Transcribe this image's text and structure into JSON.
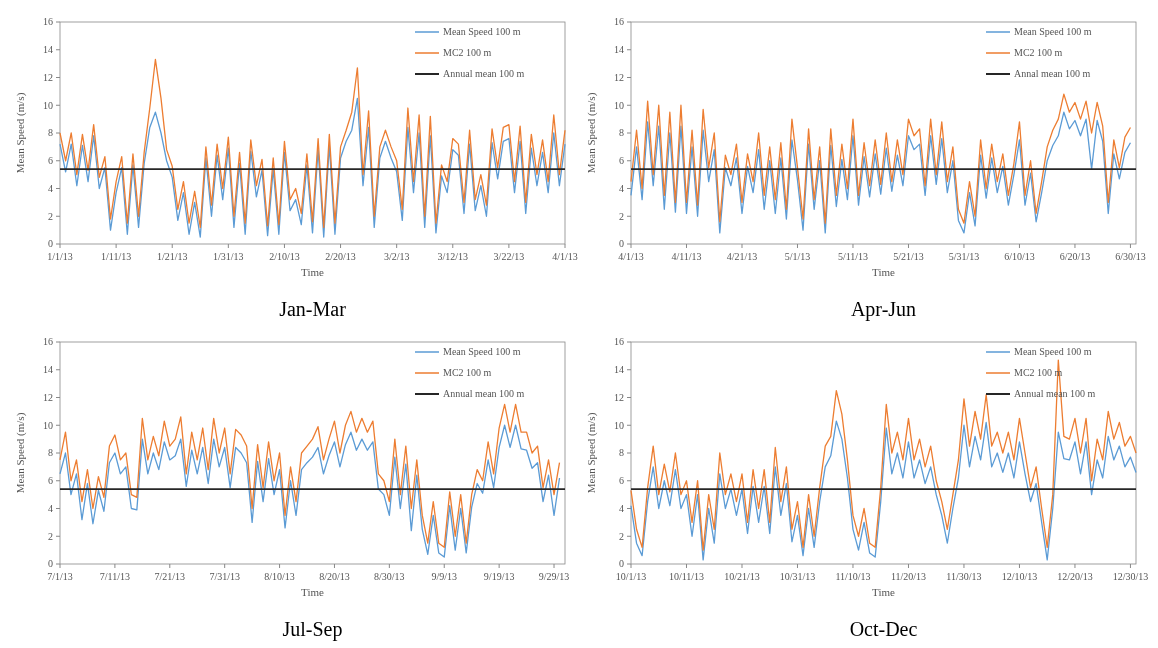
{
  "chart_data": [
    {
      "type": "line",
      "title": "Jan-Mar",
      "xlabel": "Time",
      "ylabel": "Mean Speed (m/s)",
      "legend": "top right",
      "grid": false,
      "ylim": [
        0,
        16
      ],
      "yticks": [
        0,
        2,
        4,
        6,
        8,
        10,
        12,
        14,
        16
      ],
      "xlim": [
        "--01-01",
        "--04-01"
      ],
      "xticks": [
        {
          "value": "--01-01",
          "label": "1/1/13"
        },
        {
          "value": "--01-11",
          "label": "1/11/13"
        },
        {
          "value": "--01-21",
          "label": "1/21/13"
        },
        {
          "value": "--01-31",
          "label": "1/31/13"
        },
        {
          "value": "--02-10",
          "label": "2/10/13"
        },
        {
          "value": "--02-20",
          "label": "2/20/13"
        },
        {
          "value": "--03-02",
          "label": "3/2/13"
        },
        {
          "value": "--03-12",
          "label": "3/12/13"
        },
        {
          "value": "--03-22",
          "label": "3/22/13"
        },
        {
          "value": "--04-01",
          "label": "4/1/13"
        }
      ],
      "x": [
        "--01-01",
        "--01-02",
        "--01-03",
        "--01-04",
        "--01-05",
        "--01-06",
        "--01-07",
        "--01-08",
        "--01-09",
        "--01-10",
        "--01-11",
        "--01-12",
        "--01-13",
        "--01-14",
        "--01-15",
        "--01-16",
        "--01-17",
        "--01-18",
        "--01-19",
        "--01-20",
        "--01-21",
        "--01-22",
        "--01-23",
        "--01-24",
        "--01-25",
        "--01-26",
        "--01-27",
        "--01-28",
        "--01-29",
        "--01-30",
        "--01-31",
        "--02-01",
        "--02-02",
        "--02-03",
        "--02-04",
        "--02-05",
        "--02-06",
        "--02-07",
        "--02-08",
        "--02-09",
        "--02-10",
        "--02-11",
        "--02-12",
        "--02-13",
        "--02-14",
        "--02-15",
        "--02-16",
        "--02-17",
        "--02-18",
        "--02-19",
        "--02-20",
        "--02-21",
        "--02-22",
        "--02-23",
        "--02-24",
        "--02-25",
        "--02-26",
        "--02-27",
        "--02-28",
        "--03-01",
        "--03-02",
        "--03-03",
        "--03-04",
        "--03-05",
        "--03-06",
        "--03-07",
        "--03-08",
        "--03-09",
        "--03-10",
        "--03-11",
        "--03-12",
        "--03-13",
        "--03-14",
        "--03-15",
        "--03-16",
        "--03-17",
        "--03-18",
        "--03-19",
        "--03-20",
        "--03-21",
        "--03-22",
        "--03-23",
        "--03-24",
        "--03-25",
        "--03-26",
        "--03-27",
        "--03-28",
        "--03-29",
        "--03-30",
        "--03-31",
        "--04-01"
      ],
      "series": [
        {
          "name": "Mean Speed 100 m",
          "color": "#5b9bd5",
          "values": [
            7.2,
            5.2,
            7.2,
            4.2,
            7.1,
            4.5,
            7.8,
            4,
            5.5,
            1,
            3.7,
            5.5,
            0.7,
            5.7,
            1.2,
            5.8,
            8.4,
            9.5,
            8,
            6,
            4.8,
            1.7,
            3.7,
            0.7,
            3,
            0.5,
            6.2,
            2,
            6.4,
            3.2,
            6.9,
            1.2,
            5.8,
            0.7,
            6.7,
            3.4,
            5.3,
            0.6,
            5.4,
            0.7,
            6.6,
            2.4,
            3.2,
            1.4,
            5.7,
            0.8,
            6.8,
            0.5,
            7.1,
            0.7,
            6.2,
            7.4,
            8.2,
            10.5,
            4.2,
            8.4,
            1.2,
            6.2,
            7.4,
            6.2,
            5.2,
            1.7,
            8.4,
            3.7,
            8,
            1.2,
            7.8,
            0.8,
            4.9,
            3.7,
            6.8,
            6.4,
            2.2,
            7.2,
            2.4,
            4.2,
            2,
            7.3,
            4.7,
            7.4,
            7.6,
            3.7,
            7.4,
            2.2,
            6.9,
            4.2,
            6.6,
            3.7,
            8,
            4.2,
            7.2
          ]
        },
        {
          "name": "MC2 100 m",
          "color": "#ed7d31",
          "values": [
            8,
            6,
            8,
            5,
            7.9,
            5.3,
            8.6,
            4.8,
            6.3,
            1.8,
            4.5,
            6.3,
            1.5,
            6.5,
            2,
            6.6,
            9.8,
            13.3,
            10.5,
            6.8,
            5.6,
            2.5,
            4.5,
            1.5,
            3.8,
            1.2,
            7,
            2.8,
            7.2,
            4,
            7.7,
            2,
            6.6,
            1.5,
            7.5,
            4.2,
            6.1,
            1.3,
            6.2,
            1.4,
            7.4,
            3.2,
            4,
            2.2,
            6.5,
            1.6,
            7.6,
            1.2,
            7.9,
            1.5,
            7,
            8.2,
            9.5,
            12.7,
            5,
            9.6,
            2,
            7,
            8.2,
            7,
            6,
            2.5,
            9.8,
            4.5,
            9.3,
            2,
            9.2,
            1.5,
            5.7,
            4.5,
            7.6,
            7.2,
            3,
            8.2,
            3.2,
            5,
            2.8,
            8.3,
            5.5,
            8.4,
            8.6,
            4.5,
            8.5,
            3,
            7.9,
            5,
            7.5,
            4.5,
            9.3,
            5,
            8.2
          ]
        }
      ],
      "ref_lines": [
        {
          "axis": "y",
          "value": 5.4,
          "label": "Annual mean 100 m",
          "color": "#262626"
        }
      ]
    },
    {
      "type": "line",
      "title": "Apr-Jun",
      "xlabel": "Time",
      "ylabel": "Mean Speed (m/s)",
      "legend": "top right",
      "grid": false,
      "ylim": [
        0,
        16
      ],
      "yticks": [
        0,
        2,
        4,
        6,
        8,
        10,
        12,
        14,
        16
      ],
      "xlim": [
        "--04-01",
        "--07-01"
      ],
      "xticks": [
        {
          "value": "--04-01",
          "label": "4/1/13"
        },
        {
          "value": "--04-11",
          "label": "4/11/13"
        },
        {
          "value": "--04-21",
          "label": "4/21/13"
        },
        {
          "value": "--05-01",
          "label": "5/1/13"
        },
        {
          "value": "--05-11",
          "label": "5/11/13"
        },
        {
          "value": "--05-21",
          "label": "5/21/13"
        },
        {
          "value": "--05-31",
          "label": "5/31/13"
        },
        {
          "value": "--06-10",
          "label": "6/10/13"
        },
        {
          "value": "--06-20",
          "label": "6/20/13"
        },
        {
          "value": "--06-30",
          "label": "6/30/13"
        }
      ],
      "x": [
        "--04-01",
        "--04-02",
        "--04-03",
        "--04-04",
        "--04-05",
        "--04-06",
        "--04-07",
        "--04-08",
        "--04-09",
        "--04-10",
        "--04-11",
        "--04-12",
        "--04-13",
        "--04-14",
        "--04-15",
        "--04-16",
        "--04-17",
        "--04-18",
        "--04-19",
        "--04-20",
        "--04-21",
        "--04-22",
        "--04-23",
        "--04-24",
        "--04-25",
        "--04-26",
        "--04-27",
        "--04-28",
        "--04-29",
        "--04-30",
        "--05-01",
        "--05-02",
        "--05-03",
        "--05-04",
        "--05-05",
        "--05-06",
        "--05-07",
        "--05-08",
        "--05-09",
        "--05-10",
        "--05-11",
        "--05-12",
        "--05-13",
        "--05-14",
        "--05-15",
        "--05-16",
        "--05-17",
        "--05-18",
        "--05-19",
        "--05-20",
        "--05-21",
        "--05-22",
        "--05-23",
        "--05-24",
        "--05-25",
        "--05-26",
        "--05-27",
        "--05-28",
        "--05-29",
        "--05-30",
        "--05-31",
        "--06-01",
        "--06-02",
        "--06-03",
        "--06-04",
        "--06-05",
        "--06-06",
        "--06-07",
        "--06-08",
        "--06-09",
        "--06-10",
        "--06-11",
        "--06-12",
        "--06-13",
        "--06-14",
        "--06-15",
        "--06-16",
        "--06-17",
        "--06-18",
        "--06-19",
        "--06-20",
        "--06-21",
        "--06-22",
        "--06-23",
        "--06-24",
        "--06-25",
        "--06-26",
        "--06-27",
        "--06-28",
        "--06-29",
        "--06-30"
      ],
      "series": [
        {
          "name": "Mean Speed 100 m",
          "color": "#5b9bd5",
          "values": [
            3.5,
            7,
            3.2,
            8.8,
            4.2,
            8.5,
            2.5,
            8,
            2.3,
            8.5,
            2.2,
            7,
            2,
            8.2,
            4.5,
            6.8,
            0.8,
            5.5,
            4.2,
            6.2,
            2.2,
            5.6,
            3.7,
            6.8,
            2.5,
            6,
            2.2,
            6.2,
            1.8,
            7.5,
            4.6,
            1,
            7.2,
            2.5,
            6,
            0.8,
            7.1,
            2.7,
            6.1,
            3.2,
            7.8,
            2.8,
            6.3,
            3.4,
            6.5,
            3.6,
            6.9,
            3.8,
            6.4,
            4.2,
            7.8,
            6.8,
            7.2,
            3.5,
            7.8,
            4.3,
            7.6,
            3.7,
            6,
            1.7,
            0.8,
            3.7,
            1.3,
            6.4,
            3.3,
            6.2,
            3.7,
            5.6,
            2.8,
            5,
            7.5,
            2.8,
            5.1,
            1.6,
            3.7,
            6,
            7.1,
            7.8,
            9.5,
            8.3,
            8.9,
            7.8,
            9,
            5.4,
            8.9,
            7.4,
            2.2,
            6.5,
            4.7,
            6.6,
            7.3
          ]
        },
        {
          "name": "MC2 100 m",
          "color": "#ed7d31",
          "values": [
            4.5,
            8.2,
            4,
            10.3,
            5,
            10,
            3.5,
            9.5,
            3,
            10,
            3,
            8.2,
            2.8,
            9.7,
            5.5,
            8,
            1.6,
            6.4,
            5,
            7.2,
            3,
            6.5,
            4.5,
            8,
            3.5,
            7,
            3.2,
            7.3,
            2.5,
            9,
            5.5,
            1.8,
            8.3,
            3.2,
            7,
            1.5,
            8.3,
            3.5,
            7.2,
            4,
            9,
            3.5,
            7.3,
            4.2,
            7.5,
            4.3,
            8,
            4.5,
            7.5,
            5,
            9,
            7.8,
            8.3,
            4.2,
            9,
            5,
            8.8,
            4.5,
            7,
            2.5,
            1.5,
            4.5,
            2,
            7.5,
            4,
            7.2,
            4.5,
            6.5,
            3.5,
            5.8,
            8.8,
            3.5,
            6,
            2.2,
            4.5,
            7,
            8.2,
            9,
            10.8,
            9.5,
            10.2,
            9,
            10.3,
            8,
            10.2,
            8.5,
            3,
            7.5,
            5.5,
            7.7,
            8.4
          ]
        }
      ],
      "ref_lines": [
        {
          "axis": "y",
          "value": 5.4,
          "label": "Annal mean 100 m",
          "color": "#262626"
        }
      ]
    },
    {
      "type": "line",
      "title": "Jul-Sep",
      "xlabel": "Time",
      "ylabel": "Mean Speed (m/s)",
      "legend": "top right",
      "grid": false,
      "ylim": [
        0,
        16
      ],
      "yticks": [
        0,
        2,
        4,
        6,
        8,
        10,
        12,
        14,
        16
      ],
      "xlim": [
        "--07-01",
        "--10-01"
      ],
      "xticks": [
        {
          "value": "--07-01",
          "label": "7/1/13"
        },
        {
          "value": "--07-11",
          "label": "7/11/13"
        },
        {
          "value": "--07-21",
          "label": "7/21/13"
        },
        {
          "value": "--07-31",
          "label": "7/31/13"
        },
        {
          "value": "--08-10",
          "label": "8/10/13"
        },
        {
          "value": "--08-20",
          "label": "8/20/13"
        },
        {
          "value": "--08-30",
          "label": "8/30/13"
        },
        {
          "value": "--09-09",
          "label": "9/9/13"
        },
        {
          "value": "--09-19",
          "label": "9/19/13"
        },
        {
          "value": "--09-29",
          "label": "9/29/13"
        }
      ],
      "x": [
        "--07-01",
        "--07-02",
        "--07-03",
        "--07-04",
        "--07-05",
        "--07-06",
        "--07-07",
        "--07-08",
        "--07-09",
        "--07-10",
        "--07-11",
        "--07-12",
        "--07-13",
        "--07-14",
        "--07-15",
        "--07-16",
        "--07-17",
        "--07-18",
        "--07-19",
        "--07-20",
        "--07-21",
        "--07-22",
        "--07-23",
        "--07-24",
        "--07-25",
        "--07-26",
        "--07-27",
        "--07-28",
        "--07-29",
        "--07-30",
        "--07-31",
        "--08-01",
        "--08-02",
        "--08-03",
        "--08-04",
        "--08-05",
        "--08-06",
        "--08-07",
        "--08-08",
        "--08-09",
        "--08-10",
        "--08-11",
        "--08-12",
        "--08-13",
        "--08-14",
        "--08-15",
        "--08-16",
        "--08-17",
        "--08-18",
        "--08-19",
        "--08-20",
        "--08-21",
        "--08-22",
        "--08-23",
        "--08-24",
        "--08-25",
        "--08-26",
        "--08-27",
        "--08-28",
        "--08-29",
        "--08-30",
        "--08-31",
        "--09-01",
        "--09-02",
        "--09-03",
        "--09-04",
        "--09-05",
        "--09-06",
        "--09-07",
        "--09-08",
        "--09-09",
        "--09-10",
        "--09-11",
        "--09-12",
        "--09-13",
        "--09-14",
        "--09-15",
        "--09-16",
        "--09-17",
        "--09-18",
        "--09-19",
        "--09-20",
        "--09-21",
        "--09-22",
        "--09-23",
        "--09-24",
        "--09-25",
        "--09-26",
        "--09-27",
        "--09-28",
        "--09-29",
        "--09-30"
      ],
      "series": [
        {
          "name": "Mean Speed 100 m",
          "color": "#5b9bd5",
          "values": [
            6.5,
            8,
            5,
            6.5,
            3.2,
            5.8,
            2.9,
            5.3,
            3.8,
            7.3,
            8,
            6.5,
            7,
            4,
            3.9,
            9,
            6.5,
            8,
            6.8,
            8.8,
            7.5,
            7.8,
            9,
            5.6,
            8.2,
            6.5,
            8.4,
            5.8,
            9,
            7,
            8.4,
            5.5,
            8.4,
            8,
            7.3,
            3,
            7.4,
            4.5,
            7.6,
            5,
            6.8,
            2.6,
            6,
            3.5,
            6.8,
            7.3,
            7.7,
            8.4,
            6.5,
            7.8,
            8.8,
            7,
            8.6,
            9.5,
            8.2,
            9,
            8.2,
            8.8,
            5.4,
            5,
            3.5,
            7.7,
            4,
            7.2,
            2.4,
            6.4,
            2.5,
            0.7,
            3.5,
            0.8,
            0.5,
            4.2,
            1,
            4,
            0.8,
            4.1,
            5.8,
            5.1,
            7.5,
            5.5,
            8.4,
            10,
            8.4,
            10,
            8.3,
            8.2,
            6.9,
            7.3,
            4.5,
            6.4,
            3.5,
            6.2
          ]
        },
        {
          "name": "MC2 100 m",
          "color": "#ed7d31",
          "values": [
            7.5,
            9.5,
            6,
            7.5,
            4.5,
            6.8,
            4,
            6.3,
            4.8,
            8.5,
            9.3,
            7.5,
            8,
            5,
            4.8,
            10.5,
            7.5,
            9.2,
            7.8,
            10.3,
            8.5,
            9,
            10.6,
            6.5,
            9.5,
            7.5,
            9.8,
            6.8,
            10.5,
            8,
            9.8,
            6.5,
            9.7,
            9.3,
            8.5,
            4,
            8.6,
            5.5,
            8.8,
            6,
            8,
            3.5,
            7,
            4.5,
            8,
            8.5,
            9,
            9.9,
            7.5,
            9,
            10.3,
            8,
            10,
            11,
            9.5,
            10.5,
            9.5,
            10.3,
            6.5,
            6,
            4.5,
            9,
            5,
            8.5,
            4,
            7.5,
            3.5,
            1.5,
            4.5,
            1.5,
            1.2,
            5.2,
            2,
            5,
            1.5,
            5,
            6.8,
            6,
            8.8,
            6.5,
            9.8,
            11.5,
            9.5,
            11.5,
            9.5,
            9.5,
            8,
            8.5,
            5.5,
            7.5,
            5,
            7.3
          ]
        }
      ],
      "ref_lines": [
        {
          "axis": "y",
          "value": 5.4,
          "label": "Annual mean 100 m",
          "color": "#262626"
        }
      ]
    },
    {
      "type": "line",
      "title": "Oct-Dec",
      "xlabel": "Time",
      "ylabel": "Mean Speed (m/s)",
      "legend": "top right",
      "grid": false,
      "ylim": [
        0,
        16
      ],
      "yticks": [
        0,
        2,
        4,
        6,
        8,
        10,
        12,
        14,
        16
      ],
      "xlim": [
        "--10-01",
        "--12-31"
      ],
      "xticks": [
        {
          "value": "--10-01",
          "label": "10/1/13"
        },
        {
          "value": "--10-11",
          "label": "10/11/13"
        },
        {
          "value": "--10-21",
          "label": "10/21/13"
        },
        {
          "value": "--10-31",
          "label": "10/31/13"
        },
        {
          "value": "--11-10",
          "label": "11/10/13"
        },
        {
          "value": "--11-20",
          "label": "11/20/13"
        },
        {
          "value": "--11-30",
          "label": "11/30/13"
        },
        {
          "value": "--12-10",
          "label": "12/10/13"
        },
        {
          "value": "--12-20",
          "label": "12/20/13"
        },
        {
          "value": "--12-30",
          "label": "12/30/13"
        }
      ],
      "x": [
        "--10-01",
        "--10-02",
        "--10-03",
        "--10-04",
        "--10-05",
        "--10-06",
        "--10-07",
        "--10-08",
        "--10-09",
        "--10-10",
        "--10-11",
        "--10-12",
        "--10-13",
        "--10-14",
        "--10-15",
        "--10-16",
        "--10-17",
        "--10-18",
        "--10-19",
        "--10-20",
        "--10-21",
        "--10-22",
        "--10-23",
        "--10-24",
        "--10-25",
        "--10-26",
        "--10-27",
        "--10-28",
        "--10-29",
        "--10-30",
        "--10-31",
        "--11-01",
        "--11-02",
        "--11-03",
        "--11-04",
        "--11-05",
        "--11-06",
        "--11-07",
        "--11-08",
        "--11-09",
        "--11-10",
        "--11-11",
        "--11-12",
        "--11-13",
        "--11-14",
        "--11-15",
        "--11-16",
        "--11-17",
        "--11-18",
        "--11-19",
        "--11-20",
        "--11-21",
        "--11-22",
        "--11-23",
        "--11-24",
        "--11-25",
        "--11-26",
        "--11-27",
        "--11-28",
        "--11-29",
        "--11-30",
        "--12-01",
        "--12-02",
        "--12-03",
        "--12-04",
        "--12-05",
        "--12-06",
        "--12-07",
        "--12-08",
        "--12-09",
        "--12-10",
        "--12-11",
        "--12-12",
        "--12-13",
        "--12-14",
        "--12-15",
        "--12-16",
        "--12-17",
        "--12-18",
        "--12-19",
        "--12-20",
        "--12-21",
        "--12-22",
        "--12-23",
        "--12-24",
        "--12-25",
        "--12-26",
        "--12-27",
        "--12-28",
        "--12-29",
        "--12-30",
        "--12-31"
      ],
      "series": [
        {
          "name": "Mean Speed 100 m",
          "color": "#5b9bd5",
          "values": [
            4.2,
            1.5,
            0.6,
            4.5,
            7,
            4,
            6,
            4.2,
            6.8,
            4,
            5,
            2,
            5,
            0.3,
            4,
            1.5,
            6.5,
            4,
            5.4,
            3.5,
            5.4,
            2.2,
            5.6,
            3,
            5.6,
            2.2,
            7,
            3.5,
            5.8,
            1.6,
            3.5,
            0.6,
            4,
            1.2,
            4.5,
            7,
            7.8,
            10.3,
            9,
            6.2,
            2.5,
            1,
            3,
            0.8,
            0.5,
            4.5,
            9.8,
            6.5,
            8,
            6.2,
            8.8,
            6.2,
            7.5,
            5.8,
            7,
            5,
            3.5,
            1.5,
            4,
            6.2,
            10,
            7,
            9.2,
            7.5,
            10.2,
            7,
            8,
            6.6,
            8,
            6.2,
            8.8,
            6.5,
            4.5,
            5.8,
            3,
            0.3,
            4,
            9.5,
            7.6,
            7.5,
            8.8,
            6.5,
            8.8,
            5,
            7.5,
            6.2,
            9.2,
            7.5,
            8.5,
            7,
            7.7,
            6.6
          ]
        },
        {
          "name": "MC2 100 m",
          "color": "#ed7d31",
          "values": [
            5.3,
            2.5,
            1.2,
            5.5,
            8.5,
            5,
            7.2,
            5.2,
            8,
            5,
            6,
            3,
            6,
            1,
            5,
            2.5,
            8,
            5,
            6.5,
            4.5,
            6.5,
            3,
            6.8,
            4,
            6.8,
            3,
            8.4,
            4.5,
            7,
            2.5,
            4.5,
            1.2,
            5,
            2,
            5.5,
            8.5,
            9.2,
            12.5,
            10.8,
            7.5,
            3.5,
            2,
            4,
            1.5,
            1.2,
            5.5,
            11.5,
            8,
            9.5,
            7.5,
            10.5,
            7.5,
            9,
            7,
            8.5,
            6,
            4.5,
            2.5,
            5,
            7.5,
            11.9,
            8.5,
            11,
            9,
            12.2,
            8.5,
            9.5,
            8,
            9.5,
            7.5,
            10.5,
            8,
            5.5,
            7,
            4,
            1.2,
            5,
            14.7,
            9.2,
            9,
            10.5,
            8,
            10.5,
            6,
            9,
            7.5,
            11,
            9,
            10.2,
            8.5,
            9.2,
            8
          ]
        }
      ],
      "ref_lines": [
        {
          "axis": "y",
          "value": 5.4,
          "label": "Annual mean 100 m",
          "color": "#262626"
        }
      ]
    }
  ]
}
